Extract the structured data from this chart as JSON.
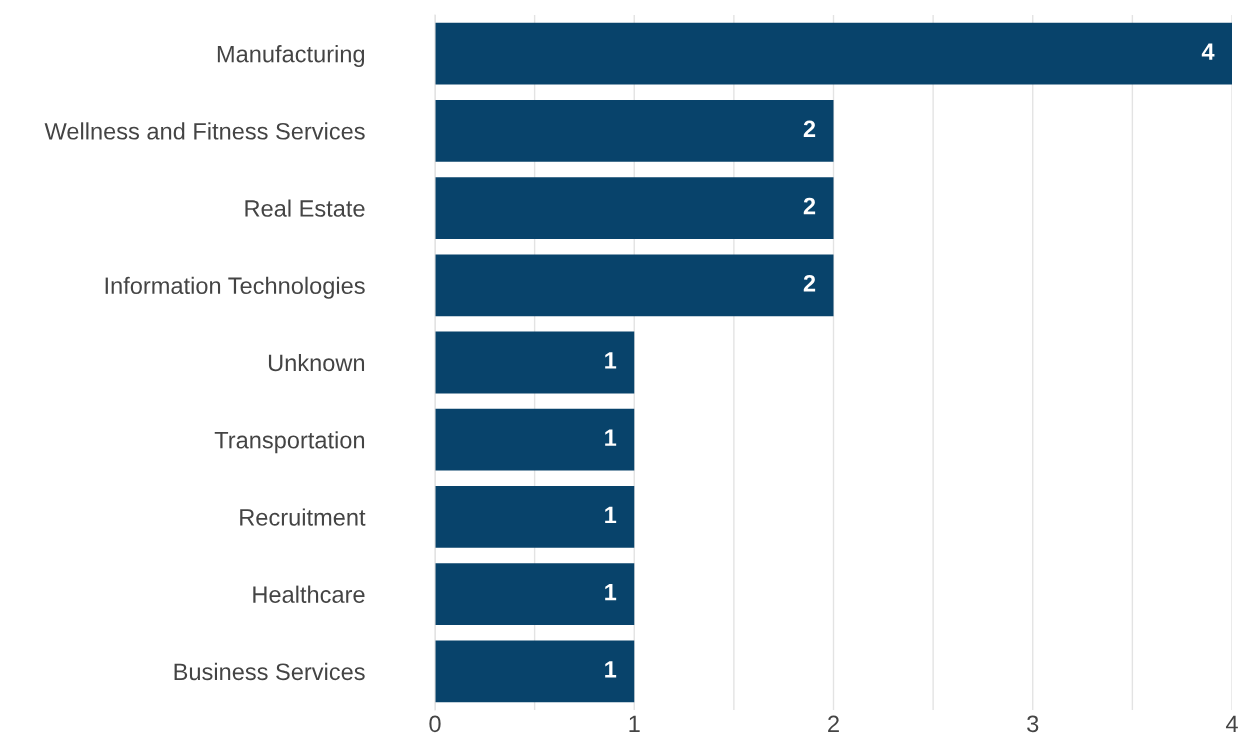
{
  "chart_data": {
    "type": "bar",
    "orientation": "horizontal",
    "categories": [
      "Manufacturing",
      "Wellness and Fitness Services",
      "Real Estate",
      "Information Technologies",
      "Unknown",
      "Transportation",
      "Recruitment",
      "Healthcare",
      "Business Services"
    ],
    "values": [
      4,
      2,
      2,
      2,
      1,
      1,
      1,
      1,
      1
    ],
    "color": "#08436b",
    "xlim": [
      0,
      4
    ],
    "xticks": [
      0,
      {
        "value": 0.5,
        "label": null
      },
      1,
      {
        "value": 1.5,
        "label": null
      },
      2,
      {
        "value": 2.5,
        "label": null
      },
      3,
      {
        "value": 3.5,
        "label": null
      },
      4
    ],
    "grid": "x",
    "data_labels": true
  }
}
